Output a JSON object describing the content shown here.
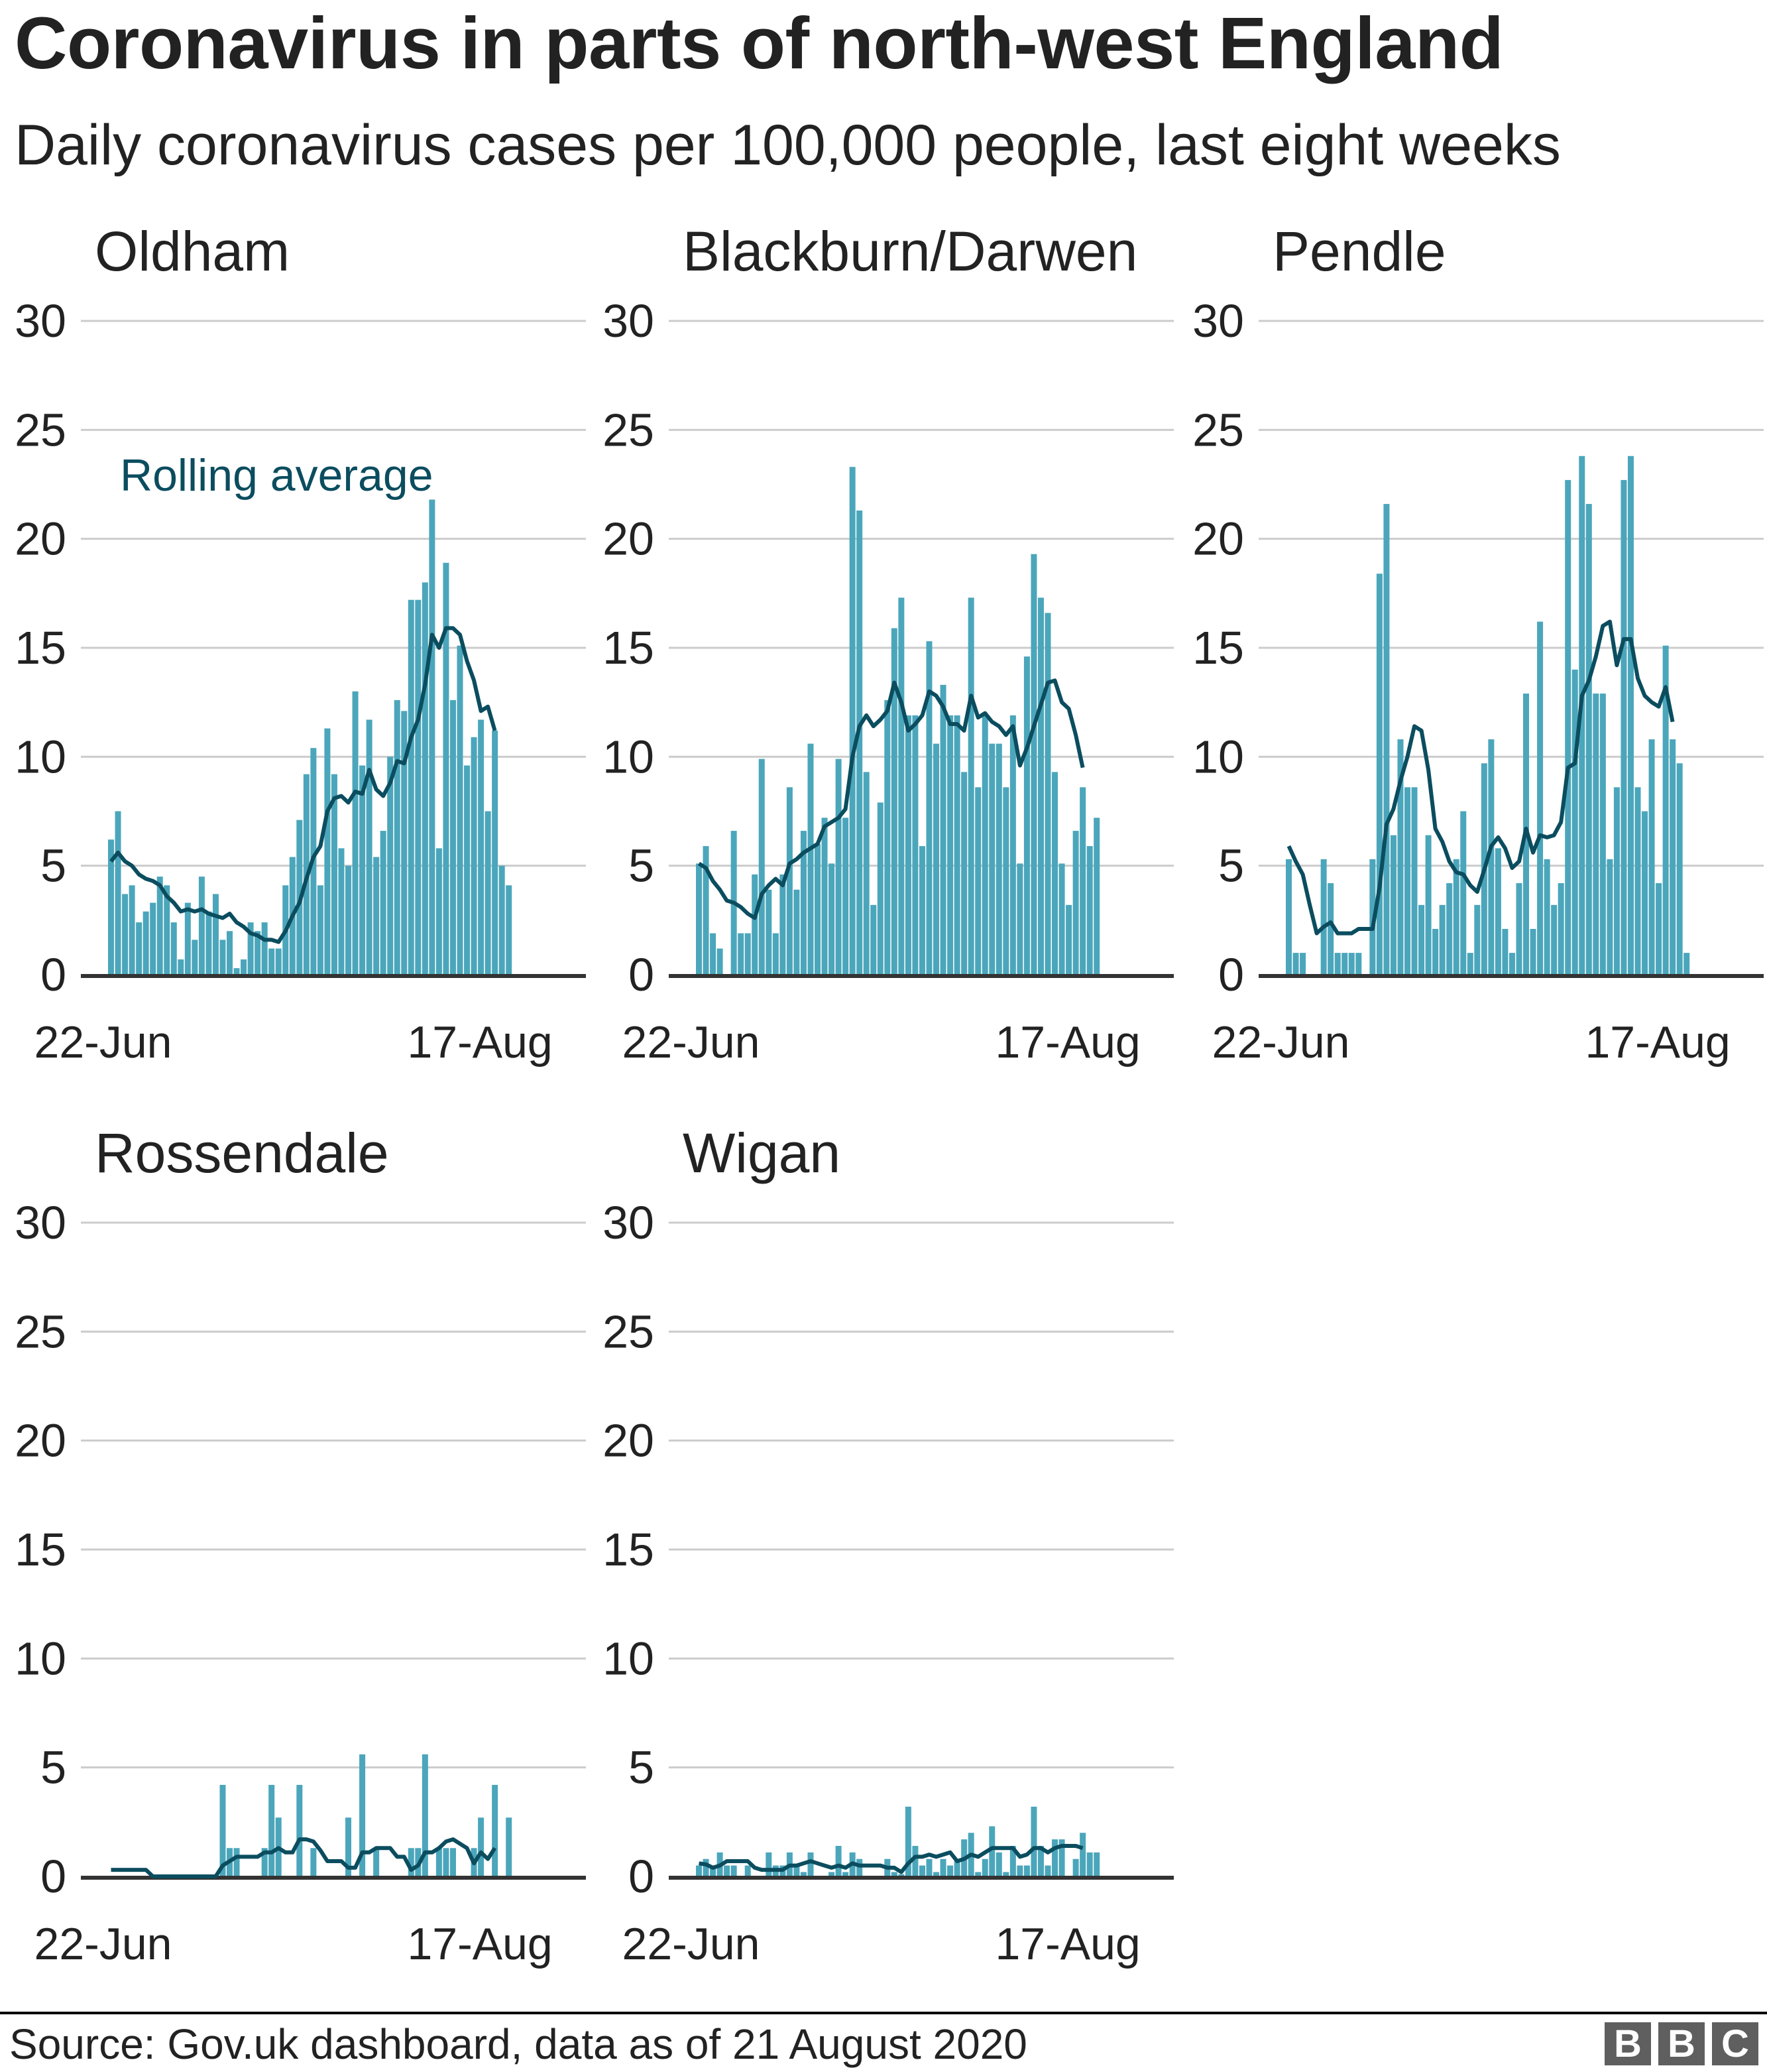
{
  "title": "Coronavirus in parts of north-west England",
  "subtitle": "Daily coronavirus cases per 100,000 people, last eight weeks",
  "source": "Source: Gov.uk dashboard, data as of 21 August 2020",
  "logo": {
    "letters": [
      "B",
      "B",
      "C"
    ],
    "color": "#5f5f5f"
  },
  "colors": {
    "bars": "#4ba6bb",
    "rolling_line": "#0b4d5f",
    "grid": "#cccccc",
    "axis": "#333333"
  },
  "chart_data": {
    "type": "bar",
    "overlay": "line",
    "ylim": [
      0,
      30
    ],
    "y_ticks": [
      0,
      5,
      10,
      15,
      20,
      25,
      30
    ],
    "x_tick_labels": [
      "22-Jun",
      "17-Aug"
    ],
    "grid": true,
    "annotation": "Rolling average",
    "panels": [
      {
        "name": "Oldham",
        "bars": [
          6.2,
          7.5,
          3.7,
          4.1,
          2.4,
          2.9,
          3.3,
          4.5,
          4.1,
          2.4,
          0.7,
          3.3,
          1.6,
          4.5,
          2.9,
          3.7,
          1.6,
          2.0,
          0.3,
          0.7,
          2.4,
          2.0,
          2.4,
          1.2,
          1.2,
          4.1,
          5.4,
          7.1,
          9.2,
          10.4,
          4.1,
          11.3,
          9.2,
          5.8,
          5.0,
          13.0,
          9.6,
          11.7,
          5.4,
          6.6,
          10.0,
          12.6,
          12.1,
          17.2,
          17.2,
          18.0,
          21.8,
          5.8,
          18.9,
          12.6,
          15.1,
          9.6,
          10.9,
          11.7,
          7.5,
          11.2,
          5.0,
          4.1
        ],
        "rolling": [
          5.2,
          5.6,
          5.2,
          5.0,
          4.6,
          4.4,
          4.3,
          4.1,
          3.6,
          3.3,
          2.9,
          3.0,
          2.9,
          3.0,
          2.8,
          2.7,
          2.6,
          2.8,
          2.4,
          2.2,
          1.9,
          1.8,
          1.6,
          1.6,
          1.5,
          2.0,
          2.7,
          3.3,
          4.4,
          5.4,
          5.9,
          7.5,
          8.1,
          8.2,
          7.9,
          8.4,
          8.3,
          9.4,
          8.5,
          8.2,
          8.8,
          9.8,
          9.7,
          10.9,
          11.7,
          13.3,
          15.6,
          15.0,
          15.9,
          15.9,
          15.6,
          14.4,
          13.5,
          12.1,
          12.3,
          11.2
        ]
      },
      {
        "name": "Blackburn/Darwen",
        "bars": [
          5.1,
          5.9,
          1.9,
          1.2,
          0,
          6.6,
          1.9,
          1.9,
          4.6,
          9.9,
          3.9,
          1.9,
          4.6,
          8.6,
          3.9,
          6.6,
          10.6,
          6.0,
          7.2,
          5.1,
          9.9,
          7.2,
          23.3,
          21.3,
          9.3,
          3.2,
          7.9,
          12.6,
          15.9,
          17.3,
          11.9,
          11.9,
          5.9,
          15.3,
          10.6,
          13.3,
          11.9,
          11.9,
          9.3,
          17.3,
          8.6,
          11.9,
          10.6,
          10.6,
          8.6,
          11.9,
          5.1,
          14.6,
          19.3,
          17.3,
          16.6,
          9.3,
          5.1,
          3.2,
          6.6,
          8.6,
          5.9,
          7.2
        ],
        "rolling": [
          5.1,
          4.9,
          4.3,
          3.9,
          3.4,
          3.3,
          3.1,
          2.8,
          2.6,
          3.7,
          4.1,
          4.4,
          4.1,
          5.1,
          5.3,
          5.6,
          5.8,
          6.0,
          6.8,
          7.0,
          7.2,
          7.6,
          10.0,
          11.4,
          11.9,
          11.4,
          11.7,
          12.1,
          13.4,
          12.5,
          11.2,
          11.5,
          11.9,
          13.0,
          12.8,
          12.3,
          11.5,
          11.5,
          11.2,
          12.8,
          11.8,
          12.0,
          11.6,
          11.4,
          11.0,
          11.4,
          9.6,
          10.4,
          11.4,
          12.4,
          13.4,
          13.5,
          12.5,
          12.2,
          11.0,
          9.5
        ]
      },
      {
        "name": "Pendle",
        "bars": [
          5.3,
          1.0,
          1.0,
          0,
          0,
          5.3,
          4.2,
          1.0,
          1.0,
          1.0,
          1.0,
          0,
          5.3,
          18.4,
          21.6,
          6.4,
          10.8,
          8.6,
          8.6,
          3.2,
          6.4,
          2.1,
          3.2,
          4.2,
          5.3,
          7.5,
          1.0,
          3.2,
          9.7,
          10.8,
          5.8,
          2.1,
          1.0,
          4.2,
          12.9,
          2.1,
          16.2,
          5.3,
          3.2,
          4.2,
          22.7,
          14.0,
          23.8,
          21.6,
          12.9,
          12.9,
          5.3,
          8.6,
          22.7,
          23.8,
          8.6,
          7.5,
          10.8,
          4.2,
          15.1,
          10.8,
          9.7,
          1.0
        ],
        "rolling": [
          5.9,
          5.2,
          4.6,
          3.2,
          1.9,
          2.2,
          2.4,
          1.9,
          1.9,
          1.9,
          2.1,
          2.1,
          2.1,
          4.0,
          6.9,
          7.6,
          8.9,
          10.0,
          11.4,
          11.2,
          9.4,
          6.7,
          6.1,
          5.2,
          4.7,
          4.6,
          4.1,
          3.8,
          4.8,
          5.9,
          6.3,
          5.8,
          4.9,
          5.2,
          6.7,
          5.6,
          6.4,
          6.3,
          6.4,
          7.0,
          9.5,
          9.7,
          12.8,
          13.5,
          14.6,
          16.0,
          16.2,
          14.2,
          15.4,
          15.4,
          13.6,
          12.8,
          12.5,
          12.3,
          13.2,
          11.6
        ]
      },
      {
        "name": "Rossendale",
        "bars": [
          0,
          0,
          0,
          0,
          0,
          0,
          0,
          0,
          0,
          0,
          0,
          0,
          0,
          0,
          0,
          0,
          4.2,
          1.3,
          1.3,
          0,
          0,
          0,
          1.3,
          4.2,
          2.7,
          0,
          0,
          4.2,
          0,
          1.3,
          0,
          0,
          0,
          0,
          2.7,
          0,
          5.6,
          0,
          1.3,
          0,
          0,
          0,
          0,
          1.3,
          1.3,
          5.6,
          0,
          1.3,
          1.3,
          1.3,
          0,
          0,
          1.3,
          2.7,
          0,
          4.2,
          0,
          2.7
        ],
        "rolling": [
          0.3,
          0.3,
          0.3,
          0.3,
          0.3,
          0.3,
          0,
          0,
          0,
          0,
          0,
          0,
          0,
          0,
          0,
          0,
          0.5,
          0.7,
          0.9,
          0.9,
          0.9,
          0.9,
          1.1,
          1.1,
          1.3,
          1.1,
          1.1,
          1.7,
          1.7,
          1.6,
          1.2,
          0.7,
          0.7,
          0.7,
          0.4,
          0.4,
          1.1,
          1.1,
          1.3,
          1.3,
          1.3,
          0.9,
          0.9,
          0.3,
          0.5,
          1.1,
          1.1,
          1.3,
          1.6,
          1.7,
          1.5,
          1.3,
          0.6,
          1.1,
          0.8,
          1.3
        ]
      },
      {
        "name": "Wigan",
        "bars": [
          0.5,
          0.8,
          0.5,
          1.1,
          0.5,
          0.5,
          0,
          0.5,
          0,
          0,
          1.1,
          0.5,
          0.5,
          1.1,
          0.5,
          0.2,
          1.1,
          0,
          0,
          0.2,
          1.4,
          0.2,
          1.1,
          0.8,
          0,
          0,
          0,
          0.8,
          0.2,
          0.1,
          3.2,
          1.4,
          0.5,
          0.8,
          0.2,
          0.8,
          0.5,
          0.7,
          1.7,
          2.0,
          0.2,
          0.8,
          2.3,
          1.1,
          0.2,
          1.4,
          0.5,
          0.5,
          3.2,
          1.4,
          0.5,
          1.7,
          1.7,
          0,
          0.8,
          2.0,
          1.1,
          1.1
        ],
        "rolling": [
          0.6,
          0.55,
          0.4,
          0.5,
          0.7,
          0.7,
          0.7,
          0.7,
          0.4,
          0.3,
          0.3,
          0.3,
          0.3,
          0.5,
          0.5,
          0.6,
          0.7,
          0.6,
          0.5,
          0.4,
          0.5,
          0.4,
          0.6,
          0.5,
          0.5,
          0.5,
          0.5,
          0.4,
          0.4,
          0.2,
          0.6,
          0.9,
          0.9,
          1.0,
          0.9,
          1.0,
          1.1,
          0.7,
          0.8,
          1.0,
          0.9,
          1.1,
          1.3,
          1.3,
          1.3,
          1.3,
          0.9,
          1.0,
          1.3,
          1.3,
          1.1,
          1.3,
          1.4,
          1.4,
          1.4,
          1.3
        ]
      }
    ]
  }
}
